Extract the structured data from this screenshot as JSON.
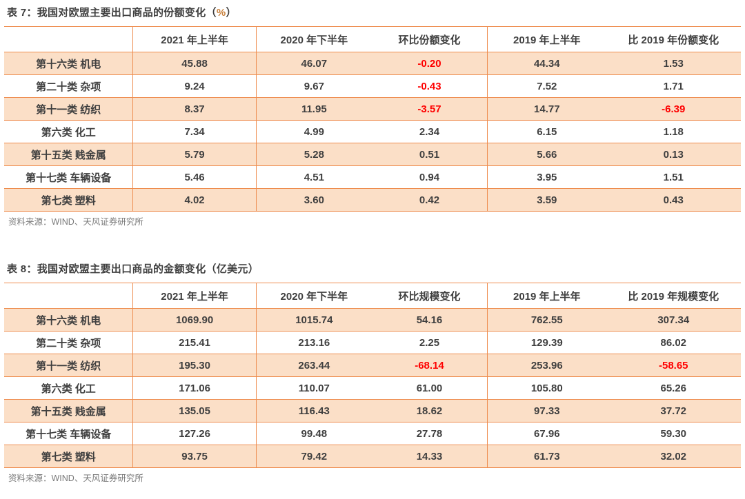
{
  "colors": {
    "table_border": "#ee8c4e",
    "row_fill_peach": "#fbdfc7",
    "text_dark": "#3f3f3f",
    "negative_red": "#fe0000",
    "source_gray": "#7a7a7a",
    "unit_orange": "#c8803c"
  },
  "tables": [
    {
      "name": "share-change-table",
      "title": {
        "prefix": "表 7：我国对欧盟主要出口商品的份额变化（",
        "unit": "%",
        "suffix": "）"
      },
      "columns": [
        "",
        "2021 年上半年",
        "2020 年下半年",
        "环比份额变化",
        "2019 年上半年",
        "比 2019 年份额变化"
      ],
      "rows": [
        {
          "label": "第十六类 机电",
          "values": [
            "45.88",
            "46.07",
            "-0.20",
            "44.34",
            "1.53"
          ]
        },
        {
          "label": "第二十类 杂项",
          "values": [
            "9.24",
            "9.67",
            "-0.43",
            "7.52",
            "1.71"
          ]
        },
        {
          "label": "第十一类 纺织",
          "values": [
            "8.37",
            "11.95",
            "-3.57",
            "14.77",
            "-6.39"
          ]
        },
        {
          "label": "第六类 化工",
          "values": [
            "7.34",
            "4.99",
            "2.34",
            "6.15",
            "1.18"
          ]
        },
        {
          "label": "第十五类 贱金属",
          "values": [
            "5.79",
            "5.28",
            "0.51",
            "5.66",
            "0.13"
          ]
        },
        {
          "label": "第十七类 车辆设备",
          "values": [
            "5.46",
            "4.51",
            "0.94",
            "3.95",
            "1.51"
          ]
        },
        {
          "label": "第七类 塑料",
          "values": [
            "4.02",
            "3.60",
            "0.42",
            "3.59",
            "0.43"
          ]
        }
      ],
      "source": "资料来源：WIND、天风证券研究所"
    },
    {
      "name": "amount-change-table",
      "title": {
        "prefix": "表 8：我国对欧盟主要出口商品的金额变化（",
        "unit": "亿美元",
        "suffix": "）"
      },
      "columns": [
        "",
        "2021 年上半年",
        "2020 年下半年",
        "环比规模变化",
        "2019 年上半年",
        "比 2019 年规模变化"
      ],
      "rows": [
        {
          "label": "第十六类 机电",
          "values": [
            "1069.90",
            "1015.74",
            "54.16",
            "762.55",
            "307.34"
          ]
        },
        {
          "label": "第二十类 杂项",
          "values": [
            "215.41",
            "213.16",
            "2.25",
            "129.39",
            "86.02"
          ]
        },
        {
          "label": "第十一类 纺织",
          "values": [
            "195.30",
            "263.44",
            "-68.14",
            "253.96",
            "-58.65"
          ]
        },
        {
          "label": "第六类 化工",
          "values": [
            "171.06",
            "110.07",
            "61.00",
            "105.80",
            "65.26"
          ]
        },
        {
          "label": "第十五类 贱金属",
          "values": [
            "135.05",
            "116.43",
            "18.62",
            "97.33",
            "37.72"
          ]
        },
        {
          "label": "第十七类 车辆设备",
          "values": [
            "127.26",
            "99.48",
            "27.78",
            "67.96",
            "59.30"
          ]
        },
        {
          "label": "第七类 塑料",
          "values": [
            "93.75",
            "79.42",
            "14.33",
            "61.73",
            "32.02"
          ]
        }
      ],
      "source": "资料来源：WIND、天风证券研究所"
    }
  ]
}
